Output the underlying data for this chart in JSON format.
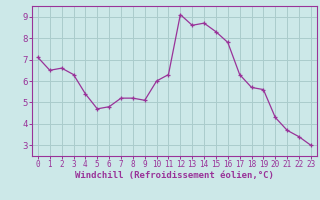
{
  "x": [
    0,
    1,
    2,
    3,
    4,
    5,
    6,
    7,
    8,
    9,
    10,
    11,
    12,
    13,
    14,
    15,
    16,
    17,
    18,
    19,
    20,
    21,
    22,
    23
  ],
  "y": [
    7.1,
    6.5,
    6.6,
    6.3,
    5.4,
    4.7,
    4.8,
    5.2,
    5.2,
    5.1,
    6.0,
    6.3,
    9.1,
    8.6,
    8.7,
    8.3,
    7.8,
    6.3,
    5.7,
    5.6,
    4.3,
    3.7,
    3.4,
    3.0
  ],
  "line_color": "#993399",
  "marker_color": "#993399",
  "bg_color": "#cce8e8",
  "grid_color": "#aacccc",
  "axis_color": "#993399",
  "xlabel": "Windchill (Refroidissement éolien,°C)",
  "xlim": [
    -0.5,
    23.5
  ],
  "ylim": [
    2.5,
    9.5
  ],
  "yticks": [
    3,
    4,
    5,
    6,
    7,
    8,
    9
  ],
  "xticks": [
    0,
    1,
    2,
    3,
    4,
    5,
    6,
    7,
    8,
    9,
    10,
    11,
    12,
    13,
    14,
    15,
    16,
    17,
    18,
    19,
    20,
    21,
    22,
    23
  ]
}
